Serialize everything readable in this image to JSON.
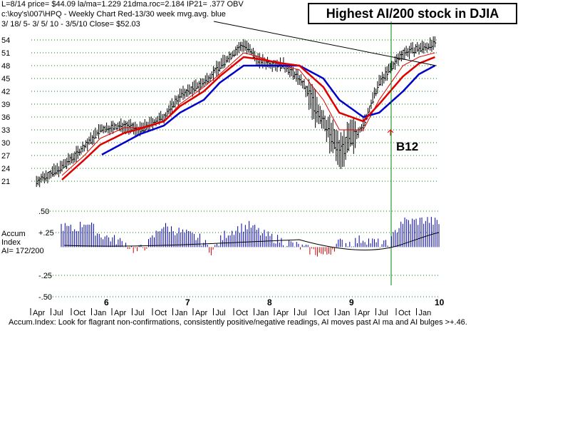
{
  "header": {
    "line1": "L=8/14  price= $44.09  la/ma=1.229 21dma.roc=2.184 IP21= .377 OBV",
    "line2": "c:\\koy's\\007\\HPQ  - Weekly Chart  Red-13/30 week mvg.avg.  blue",
    "line3": "3/ 18/ 5- 3/ 5/ 10 - 3/5/10    Close= $52.03",
    "title": "Highest AI/200 stock in DJIA"
  },
  "accum": {
    "label1": "Accum",
    "label2": "Index",
    "label3": "AI= 172/200"
  },
  "annotation": "B12",
  "footer": "Accum.Index: Look for flagrant non-confirmations, consistently positive/negative readings, AI moves past AI ma and AI bulges >+.46.",
  "colors": {
    "grid": "#008000",
    "price": "#000000",
    "ma13": "#e00000",
    "ma30": "#0000cc",
    "accum_pos": "#0000aa",
    "accum_neg": "#cc0000",
    "signal": "#008000"
  },
  "chart_data": [
    {
      "type": "line",
      "title": "",
      "y_ticks": [
        21,
        24,
        27,
        30,
        33,
        36,
        39,
        42,
        45,
        48,
        51,
        54
      ],
      "ylim": [
        19,
        56
      ],
      "x": [
        5.2,
        5.5,
        5.8,
        6.0,
        6.3,
        6.5,
        6.8,
        7.0,
        7.3,
        7.5,
        7.8,
        8.0,
        8.3,
        8.5,
        8.8,
        9.0,
        9.3,
        9.5,
        9.8,
        10.0,
        10.2
      ],
      "series": [
        {
          "name": "price",
          "values": [
            21,
            24,
            29,
            33,
            34,
            33,
            36,
            41,
            44,
            48,
            53,
            49,
            48,
            45,
            35,
            28,
            34,
            44,
            51,
            52,
            53
          ]
        },
        {
          "name": "13 week mvg.avg.",
          "values": [
            null,
            22,
            27,
            31,
            33.5,
            33.5,
            35,
            39,
            43,
            46,
            51,
            50,
            48,
            47,
            40,
            33,
            33,
            40,
            48,
            50,
            51
          ]
        },
        {
          "name": "30 week mvg.avg.",
          "values": [
            null,
            null,
            null,
            27,
            30,
            32,
            34,
            37,
            40,
            44,
            48,
            48,
            48,
            48,
            45,
            40,
            36,
            37,
            42,
            46,
            48
          ]
        }
      ]
    },
    {
      "type": "bar",
      "title": "",
      "y_ticks": [
        ".50",
        "+.25",
        "-.25",
        "-.50"
      ],
      "ylim": [
        -0.5,
        0.5
      ],
      "x_tick_labels": [
        "6",
        "7",
        "8",
        "9",
        "10"
      ],
      "month_labels": [
        "Apr",
        "Jul",
        "Oct",
        "Jan",
        "Apr",
        "Jul",
        "Oct",
        "Jan",
        "Apr",
        "Jul",
        "Oct",
        "Jan",
        "Apr",
        "Jul",
        "Oct",
        "Jan",
        "Apr",
        "Jul",
        "Oct",
        "Jan"
      ],
      "values": [
        0.25,
        0.2,
        0.3,
        0.15,
        0.1,
        0.05,
        -0.05,
        0.05,
        0.25,
        0.2,
        0.15,
        0.1,
        -0.05,
        0.15,
        0.22,
        0.25,
        0.15,
        0.1,
        0.05,
        0.0,
        -0.05,
        -0.1,
        0.05,
        0.05,
        0.1,
        0.05,
        0.02,
        0.3,
        0.3,
        0.32,
        0.28
      ]
    }
  ]
}
